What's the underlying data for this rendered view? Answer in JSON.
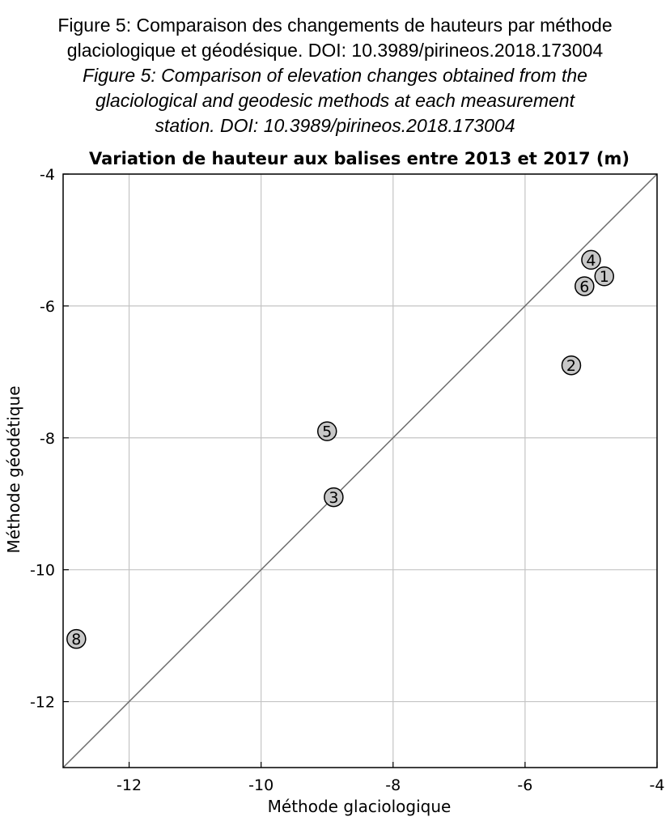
{
  "caption": {
    "french_line1": "Figure 5: Comparaison des changements de hauteurs par méthode",
    "french_line2": "glaciologique et géodésique. DOI: 10.3989/pirineos.2018.173004",
    "english_line1": "Figure 5: Comparison of elevation changes obtained from the",
    "english_line2": "glaciological and geodesic methods at each measurement",
    "english_line3": "station. DOI: 10.3989/pirineos.2018.173004"
  },
  "chart_data": {
    "type": "scatter",
    "title": "Variation de hauteur aux balises entre 2013 et 2017 (m)",
    "xlabel": "Méthode glaciologique",
    "ylabel": "Méthode géodétique",
    "xlim": [
      -13,
      -4
    ],
    "ylim": [
      -13,
      -4
    ],
    "xticks": [
      -12,
      -10,
      -8,
      -6,
      -4
    ],
    "yticks": [
      -4,
      -6,
      -8,
      -10,
      -12
    ],
    "grid": true,
    "reference_line": {
      "from": [
        -13,
        -13
      ],
      "to": [
        -4,
        -4
      ],
      "color": "#6e6e6e"
    },
    "marker_fill": "#c8c8c8",
    "marker_stroke": "#000000",
    "points": [
      {
        "label": "1",
        "x": -4.8,
        "y": -5.55
      },
      {
        "label": "2",
        "x": -5.3,
        "y": -6.9
      },
      {
        "label": "3",
        "x": -8.9,
        "y": -8.9
      },
      {
        "label": "4",
        "x": -5.0,
        "y": -5.3
      },
      {
        "label": "5",
        "x": -9.0,
        "y": -7.9
      },
      {
        "label": "6",
        "x": -5.1,
        "y": -5.7
      },
      {
        "label": "8",
        "x": -12.8,
        "y": -11.05
      }
    ]
  }
}
